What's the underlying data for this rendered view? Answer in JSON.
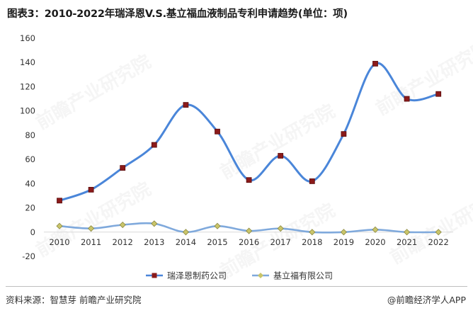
{
  "title": "图表3：2010-2022年瑞泽恩V.S.基立福血液制品专利申请趋势(单位：项)",
  "footer": {
    "source": "资料来源：智慧芽 前瞻产业研究院",
    "credit": "@前瞻经济学人APP"
  },
  "watermark": "前瞻产业研究院",
  "chart_data": {
    "type": "line",
    "categories": [
      "2010",
      "2011",
      "2012",
      "2013",
      "2014",
      "2015",
      "2016",
      "2017",
      "2018",
      "2019",
      "2020",
      "2021",
      "2022"
    ],
    "series": [
      {
        "name": "瑞泽恩制药公司",
        "values": [
          26,
          35,
          53,
          72,
          105,
          83,
          43,
          63,
          42,
          81,
          139,
          110,
          114
        ],
        "line_color": "#4a86d9",
        "marker_color": "#8b1a1a",
        "marker": "square"
      },
      {
        "name": "基立福有限公司",
        "values": [
          5,
          3,
          6,
          7,
          0,
          5,
          1,
          3,
          0,
          0,
          2,
          0,
          0
        ],
        "line_color": "#7fa9dc",
        "marker_color": "#c9c56a",
        "marker": "diamond"
      }
    ],
    "ylim": [
      -20,
      160
    ],
    "yticks": [
      -20,
      0,
      20,
      40,
      60,
      80,
      100,
      120,
      140,
      160
    ],
    "grid": false,
    "legend": "bottom-center",
    "smooth": true
  }
}
